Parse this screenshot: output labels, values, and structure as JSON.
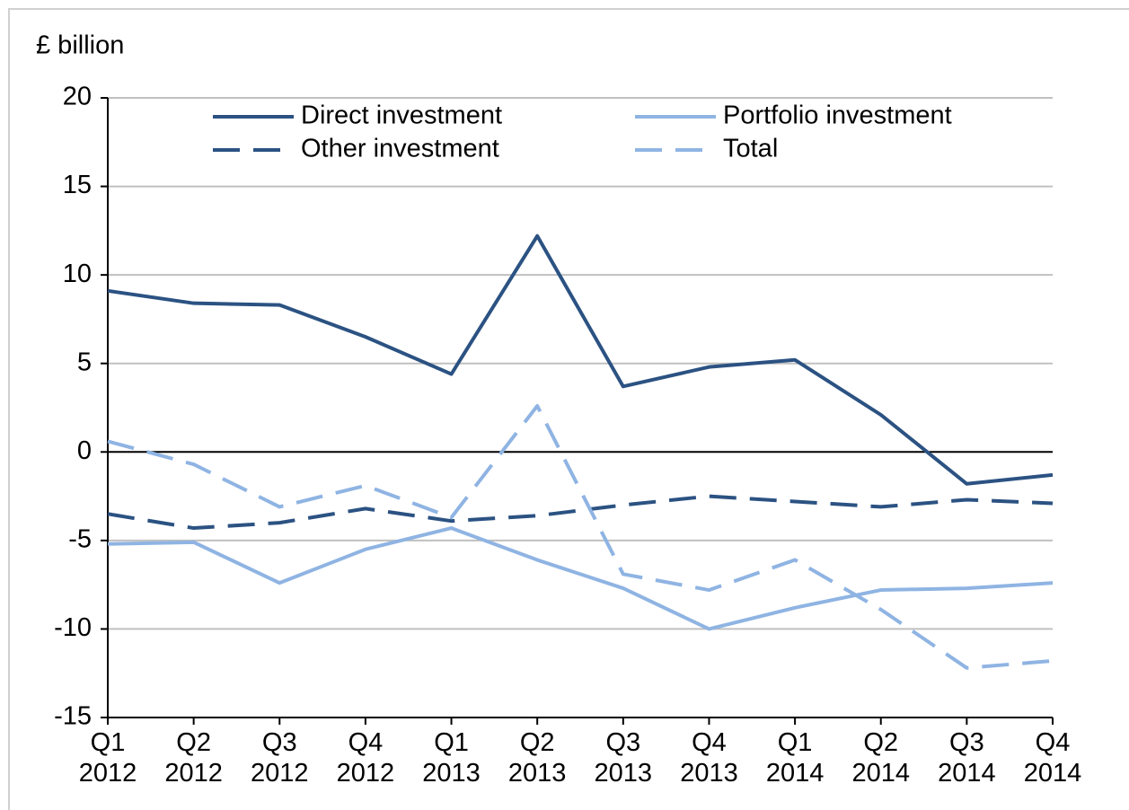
{
  "chart_data": {
    "type": "line",
    "y_label": "£ billion",
    "categories": [
      "Q1 2012",
      "Q2 2012",
      "Q3 2012",
      "Q4 2012",
      "Q1 2013",
      "Q2 2013",
      "Q3 2013",
      "Q4 2013",
      "Q1 2014",
      "Q2 2014",
      "Q3 2014",
      "Q4 2014"
    ],
    "series": [
      {
        "name": "Direct investment",
        "color": "#2b5282",
        "style": "solid",
        "values": [
          9.1,
          8.4,
          8.3,
          6.5,
          4.4,
          12.2,
          3.7,
          4.8,
          5.2,
          2.1,
          -1.8,
          -1.3
        ]
      },
      {
        "name": "Portfolio investment",
        "color": "#8fb4e3",
        "style": "solid",
        "values": [
          -5.2,
          -5.1,
          -7.4,
          -5.5,
          -4.3,
          -6.1,
          -7.7,
          -10.0,
          -8.8,
          -7.8,
          -7.7,
          -7.4
        ]
      },
      {
        "name": "Other investment",
        "color": "#2b5282",
        "style": "dashed",
        "values": [
          -3.5,
          -4.3,
          -4.0,
          -3.2,
          -3.9,
          -3.6,
          -3.0,
          -2.5,
          -2.8,
          -3.1,
          -2.7,
          -2.9
        ]
      },
      {
        "name": "Total",
        "color": "#8fb4e3",
        "style": "dashed",
        "values": [
          0.6,
          -0.7,
          -3.1,
          -1.9,
          -3.7,
          2.6,
          -6.9,
          -7.8,
          -6.1,
          -8.9,
          -12.2,
          -11.8
        ]
      }
    ],
    "ylim": [
      -15,
      20
    ],
    "yticks": [
      -15,
      -10,
      -5,
      0,
      5,
      10,
      15,
      20
    ],
    "grid": true,
    "legend": "top"
  }
}
